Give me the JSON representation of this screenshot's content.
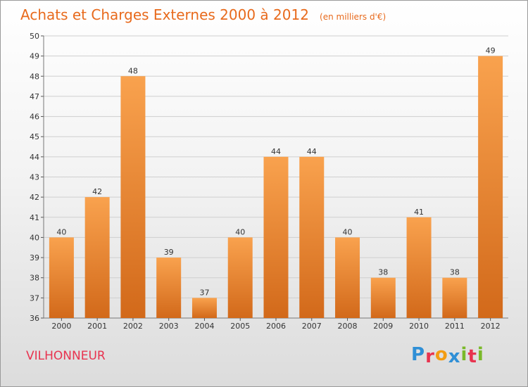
{
  "header": {
    "title": "Achats et Charges Externes 2000 à 2012",
    "subtitle": "(en milliers d'€)"
  },
  "footer": {
    "place": "VILHONNEUR",
    "logo_letters": [
      "P",
      "r",
      "o",
      "x",
      "i",
      "t",
      "i"
    ]
  },
  "colors": {
    "title": "#e86a1c",
    "place": "#e8334f",
    "bar_top": "#f9a24e",
    "bar_bottom": "#d2691a",
    "grid": "#cfcfcf",
    "logo": [
      "#2f8fd6",
      "#e8334f",
      "#f39c12",
      "#2f8fd6",
      "#7ab929",
      "#e8334f",
      "#7ab929"
    ]
  },
  "chart_data": {
    "type": "bar",
    "title": "Achats et Charges Externes 2000 à 2012",
    "subtitle": "(en milliers d'€)",
    "categories": [
      "2000",
      "2001",
      "2002",
      "2003",
      "2004",
      "2005",
      "2006",
      "2007",
      "2008",
      "2009",
      "2010",
      "2011",
      "2012"
    ],
    "values": [
      40,
      42,
      48,
      39,
      37,
      40,
      44,
      44,
      40,
      38,
      41,
      38,
      49
    ],
    "ylim": [
      36,
      50
    ],
    "yticks": [
      36,
      37,
      38,
      39,
      40,
      41,
      42,
      43,
      44,
      45,
      46,
      47,
      48,
      49,
      50
    ],
    "grid": true,
    "data_labels": true
  }
}
